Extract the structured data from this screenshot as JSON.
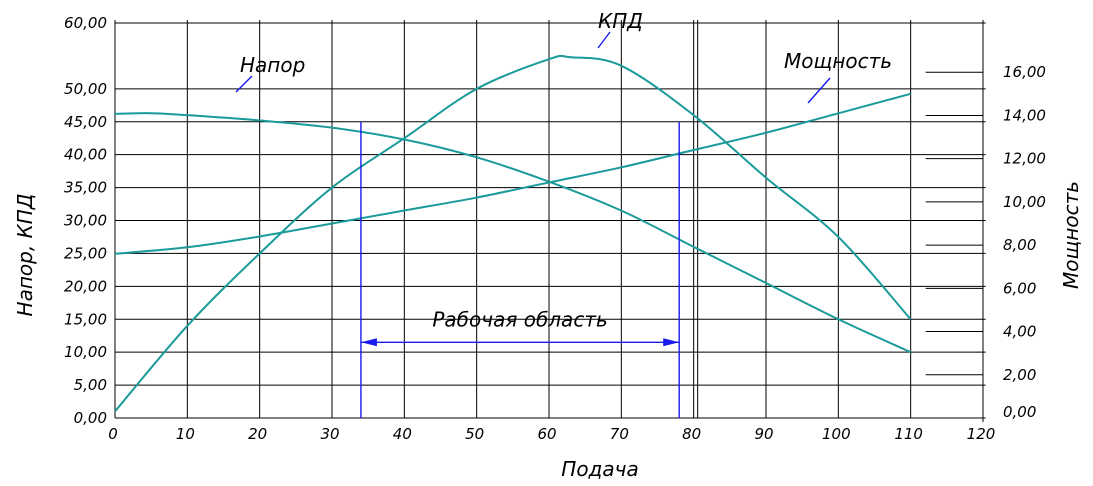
{
  "chart_data": {
    "type": "line",
    "xlabel": "Подача",
    "ylabel_left": "Напор, КПД",
    "ylabel_right": "Мощность",
    "xlim": [
      0,
      120
    ],
    "ylim_left": [
      0,
      60
    ],
    "ylim_right": [
      0,
      18
    ],
    "x_ticks": [
      "0",
      "10",
      "20",
      "30",
      "40",
      "50",
      "60",
      "70",
      "80",
      "90",
      "100",
      "110",
      "120"
    ],
    "y_left_ticks": [
      {
        "v": 0,
        "label": "0,00"
      },
      {
        "v": 5,
        "label": "5,00"
      },
      {
        "v": 10,
        "label": "10,00"
      },
      {
        "v": 15,
        "label": "15,00"
      },
      {
        "v": 20,
        "label": "20,00"
      },
      {
        "v": 25,
        "label": "25,00"
      },
      {
        "v": 30,
        "label": "30,00"
      },
      {
        "v": 35,
        "label": "35,00"
      },
      {
        "v": 40,
        "label": "40,00"
      },
      {
        "v": 45,
        "label": "45,00"
      },
      {
        "v": 50,
        "label": "50,00"
      },
      {
        "v": 60,
        "label": "60,00"
      }
    ],
    "y_right_ticks": [
      {
        "v": 0,
        "label": "0,00"
      },
      {
        "v": 2,
        "label": "2,00"
      },
      {
        "v": 4,
        "label": "4,00"
      },
      {
        "v": 6,
        "label": "6,00"
      },
      {
        "v": 8,
        "label": "8,00"
      },
      {
        "v": 10,
        "label": "10,00"
      },
      {
        "v": 12,
        "label": "12,00"
      },
      {
        "v": 14,
        "label": "14,00"
      },
      {
        "v": 16,
        "label": "16,00"
      }
    ],
    "grid": true,
    "series": [
      {
        "name": "Напор",
        "axis": "left",
        "x": [
          0,
          5,
          10,
          20,
          30,
          40,
          50,
          60,
          70,
          80,
          90,
          100,
          110
        ],
        "y": [
          46.2,
          46.3,
          46.0,
          45.2,
          44.1,
          42.3,
          39.6,
          35.9,
          31.5,
          26.0,
          20.5,
          15.0,
          10.0
        ]
      },
      {
        "name": "КПД",
        "axis": "left",
        "x": [
          0,
          10,
          20,
          30,
          40,
          50,
          60,
          63,
          70,
          80,
          90,
          100,
          110
        ],
        "y": [
          1.0,
          14.0,
          25.0,
          35.0,
          42.5,
          50.0,
          54.5,
          54.8,
          53.5,
          46.0,
          36.5,
          27.5,
          15.0
        ]
      },
      {
        "name": "Мощность",
        "axis": "right",
        "x": [
          0,
          10,
          20,
          30,
          40,
          50,
          60,
          70,
          80,
          90,
          100,
          110
        ],
        "y": [
          7.6,
          7.9,
          8.4,
          9.0,
          9.6,
          10.2,
          10.9,
          11.6,
          12.4,
          13.2,
          14.1,
          15.0
        ]
      }
    ],
    "work_zone": {
      "label": "Рабочая область",
      "x_from": 34,
      "x_to": 78,
      "top": 45,
      "arrow_y": 11.5
    }
  }
}
